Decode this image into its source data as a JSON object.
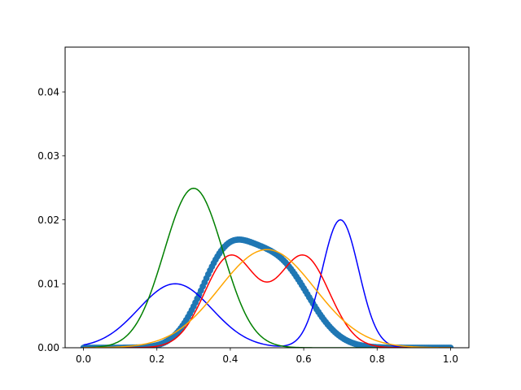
{
  "chart_data": {
    "type": "line",
    "title": "",
    "xlabel": "",
    "ylabel": "",
    "xlim": [
      -0.05,
      1.05
    ],
    "ylim": [
      0.0,
      0.047
    ],
    "xticks": [
      0.0,
      0.2,
      0.4,
      0.6,
      0.8,
      1.0
    ],
    "xtick_labels": [
      "0.0",
      "0.2",
      "0.4",
      "0.6",
      "0.8",
      "1.0"
    ],
    "yticks": [
      0.0,
      0.01,
      0.02,
      0.03,
      0.04
    ],
    "ytick_labels": [
      "0.00",
      "0.01",
      "0.02",
      "0.03",
      "0.04"
    ],
    "grid": false,
    "legend": "none",
    "lines": [
      {
        "color": "#0000ff",
        "components": [
          {
            "weight": 0.5,
            "mu": 0.25,
            "sigma": 0.1
          },
          {
            "weight": 0.5,
            "mu": 0.7,
            "sigma": 0.05
          }
        ]
      },
      {
        "color": "#008000",
        "components": [
          {
            "weight": 1.0,
            "mu": 0.3,
            "sigma": 0.08
          }
        ]
      },
      {
        "color": "#ff0000",
        "components": [
          {
            "weight": 0.5,
            "mu": 0.4,
            "sigma": 0.07
          },
          {
            "weight": 0.5,
            "mu": 0.6,
            "sigma": 0.07
          }
        ]
      },
      {
        "color": "#ffa500",
        "components": [
          {
            "weight": 1.0,
            "mu": 0.5,
            "sigma": 0.13
          }
        ]
      }
    ],
    "scatter": {
      "color": "#1f77b4",
      "x_start": 0.0,
      "x_end": 1.0,
      "n_points": 201,
      "components": [
        {
          "weight": 0.45,
          "mu": 0.385,
          "sigma": 0.07
        },
        {
          "weight": 0.55,
          "mu": 0.53,
          "sigma": 0.085
        }
      ]
    }
  }
}
